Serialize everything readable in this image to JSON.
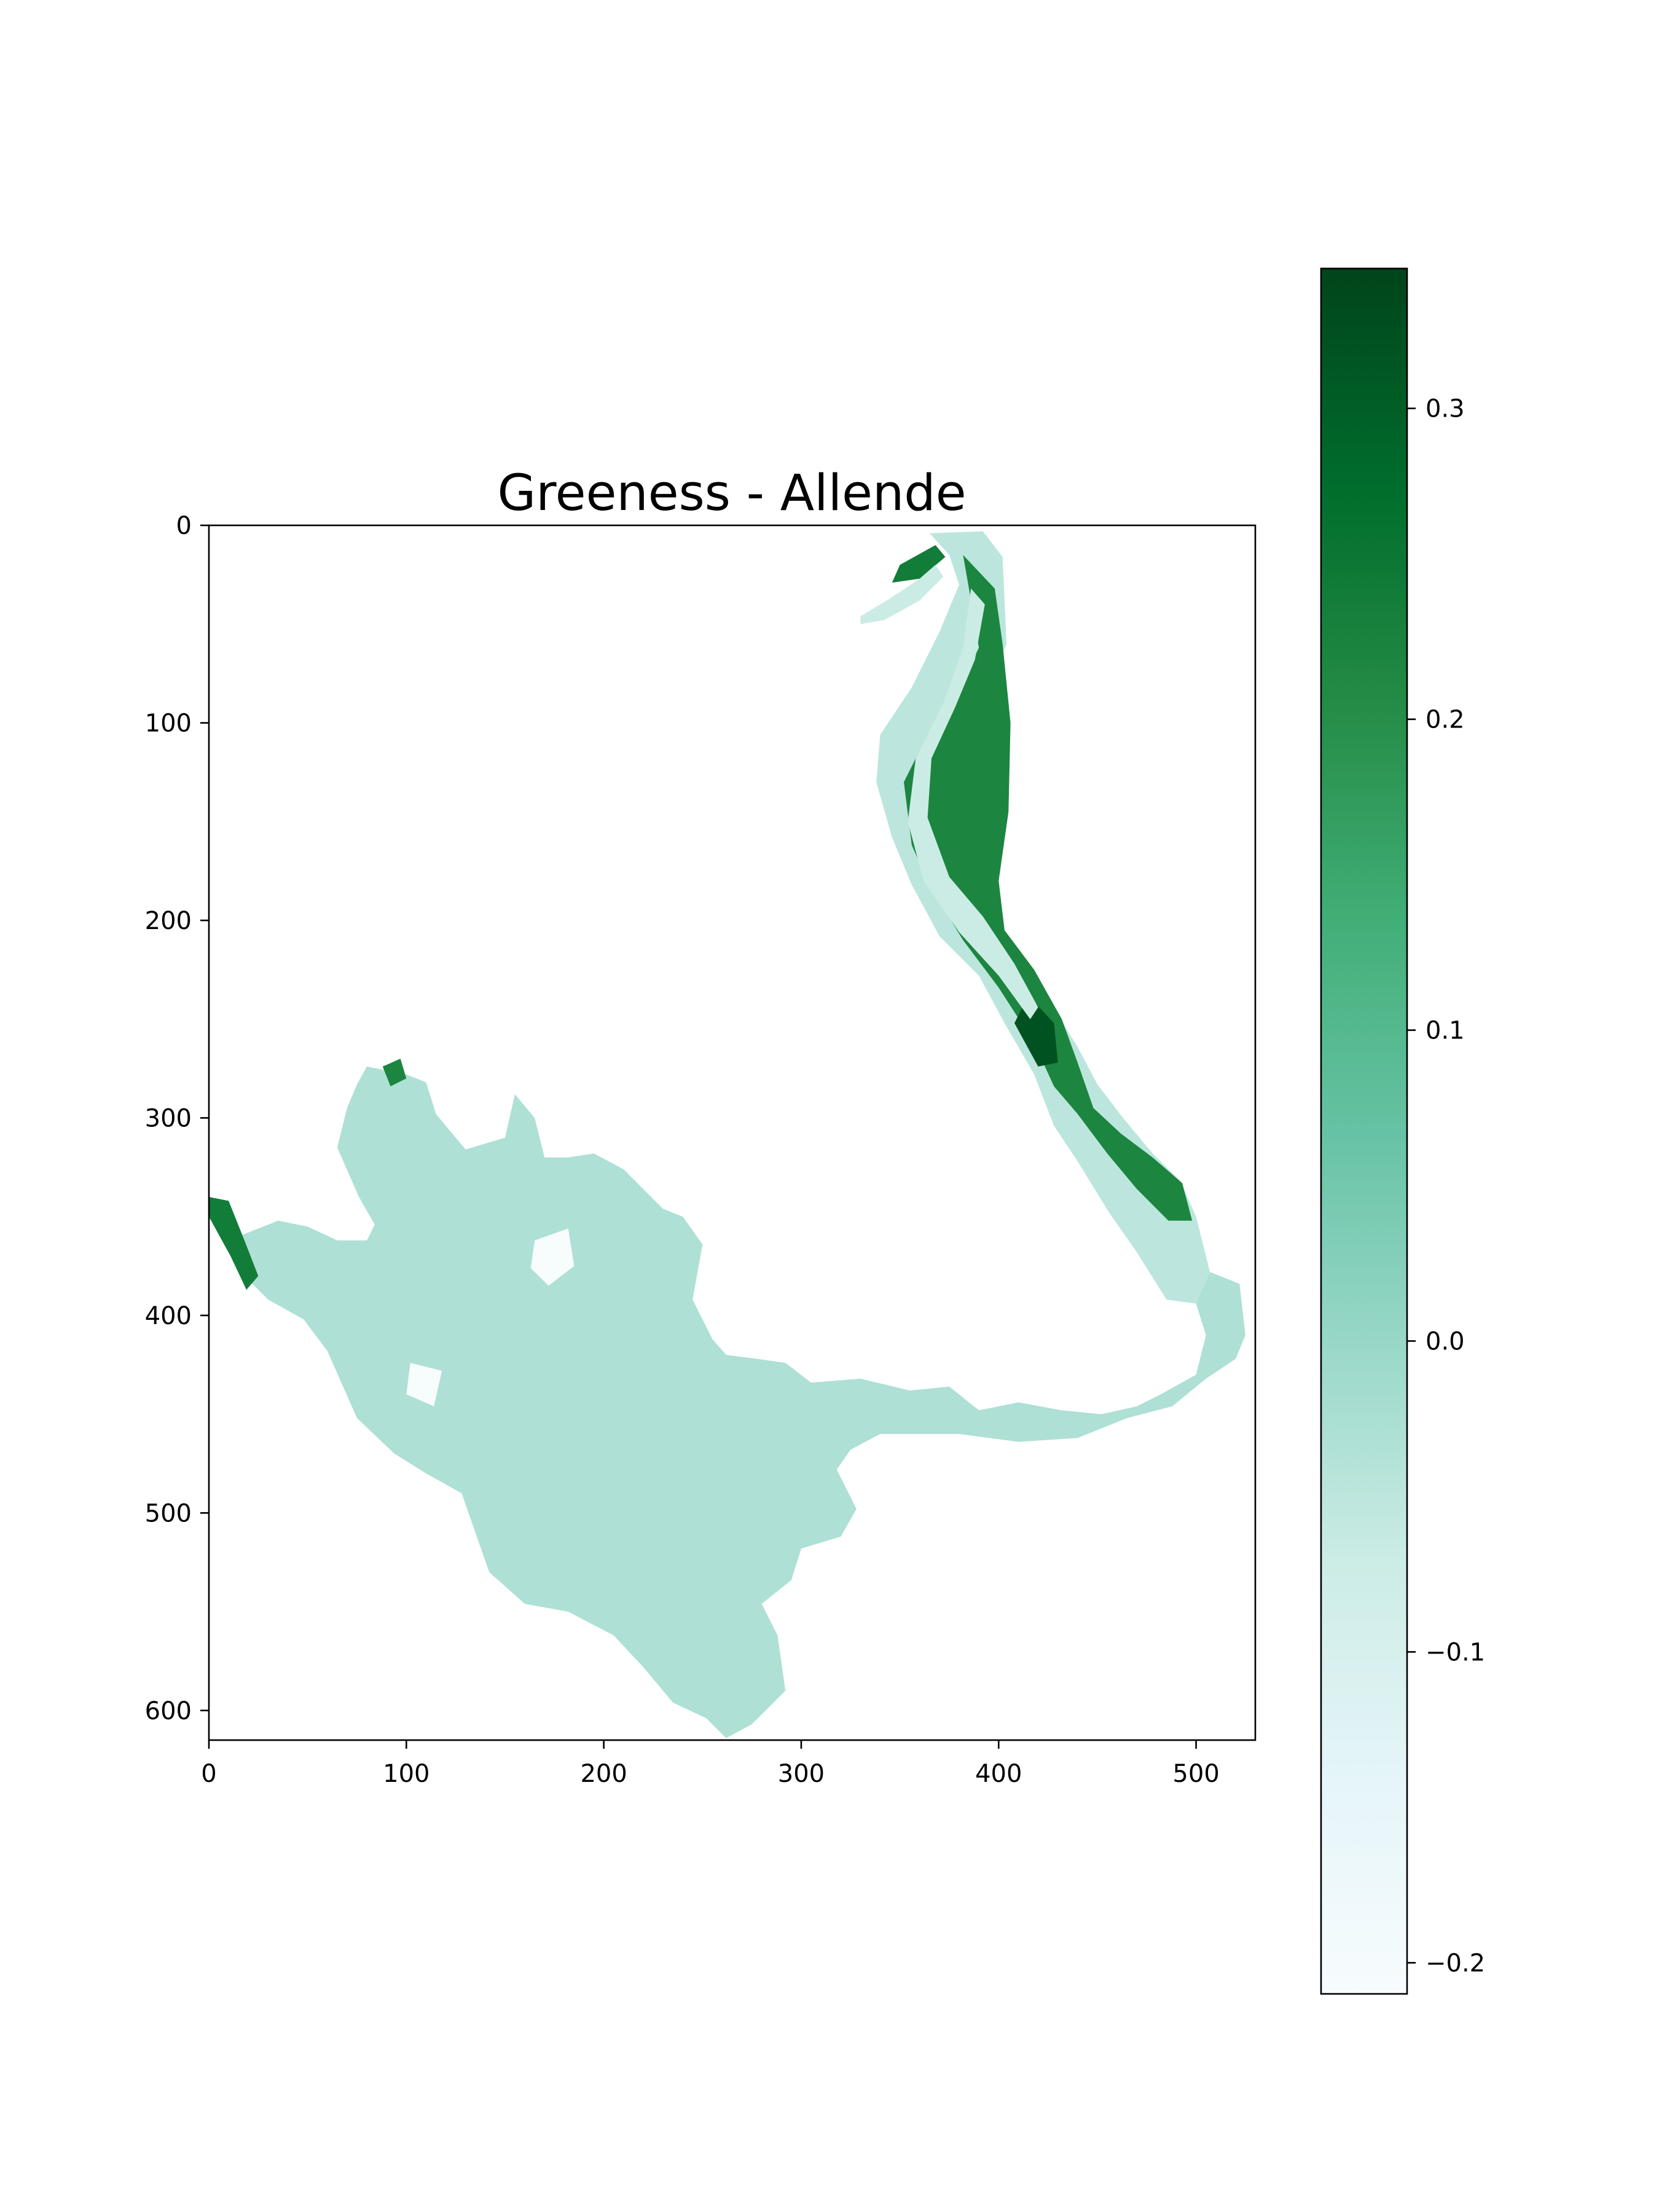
{
  "chart_data": {
    "type": "heatmap",
    "title": "Greeness - Allende",
    "xlabel": "",
    "ylabel": "",
    "x_range": [
      0,
      530
    ],
    "y_range": [
      0,
      615
    ],
    "y_inverted": true,
    "x_ticks": [
      0,
      100,
      200,
      300,
      400,
      500
    ],
    "y_ticks": [
      0,
      100,
      200,
      300,
      400,
      500,
      600
    ],
    "x_tick_labels": [
      "0",
      "100",
      "200",
      "300",
      "400",
      "500"
    ],
    "y_tick_labels": [
      "0",
      "100",
      "200",
      "300",
      "400",
      "500",
      "600"
    ],
    "grid": false,
    "colormap": "BuGn",
    "colorbar": {
      "range": [
        -0.21,
        0.345
      ],
      "ticks": [
        -0.2,
        -0.1,
        0.0,
        0.1,
        0.2,
        0.3
      ],
      "tick_labels": [
        "−0.2",
        "−0.1",
        "0.0",
        "0.1",
        "0.2",
        "0.3"
      ],
      "colors": [
        "#f7fcfd",
        "#e5f5f9",
        "#ccece6",
        "#99d8c9",
        "#66c2a4",
        "#41ae76",
        "#238b45",
        "#006d2c",
        "#00441b"
      ]
    },
    "regions": [
      {
        "name": "reservoir-body",
        "value": -0.03,
        "outline": [
          [
            80,
            274
          ],
          [
            100,
            278
          ],
          [
            110,
            282
          ],
          [
            115,
            298
          ],
          [
            130,
            316
          ],
          [
            150,
            310
          ],
          [
            155,
            288
          ],
          [
            165,
            300
          ],
          [
            170,
            320
          ],
          [
            182,
            320
          ],
          [
            195,
            318
          ],
          [
            210,
            326
          ],
          [
            230,
            346
          ],
          [
            240,
            350
          ],
          [
            250,
            364
          ],
          [
            245,
            392
          ],
          [
            255,
            412
          ],
          [
            262,
            420
          ],
          [
            278,
            422
          ],
          [
            292,
            424
          ],
          [
            305,
            434
          ],
          [
            330,
            432
          ],
          [
            355,
            438
          ],
          [
            375,
            436
          ],
          [
            390,
            448
          ],
          [
            410,
            444
          ],
          [
            432,
            448
          ],
          [
            452,
            450
          ],
          [
            470,
            446
          ],
          [
            482,
            440
          ],
          [
            500,
            430
          ],
          [
            505,
            410
          ],
          [
            500,
            394
          ],
          [
            507,
            378
          ],
          [
            522,
            384
          ],
          [
            525,
            410
          ],
          [
            520,
            422
          ],
          [
            505,
            432
          ],
          [
            488,
            446
          ],
          [
            465,
            452
          ],
          [
            440,
            462
          ],
          [
            410,
            464
          ],
          [
            380,
            460
          ],
          [
            340,
            460
          ],
          [
            325,
            468
          ],
          [
            318,
            478
          ],
          [
            328,
            498
          ],
          [
            320,
            512
          ],
          [
            300,
            518
          ],
          [
            295,
            534
          ],
          [
            280,
            546
          ],
          [
            288,
            562
          ],
          [
            292,
            590
          ],
          [
            275,
            607
          ],
          [
            262,
            614
          ],
          [
            252,
            604
          ],
          [
            235,
            596
          ],
          [
            220,
            578
          ],
          [
            205,
            562
          ],
          [
            182,
            550
          ],
          [
            160,
            546
          ],
          [
            142,
            530
          ],
          [
            135,
            510
          ],
          [
            128,
            490
          ],
          [
            110,
            480
          ],
          [
            94,
            470
          ],
          [
            75,
            452
          ],
          [
            60,
            418
          ],
          [
            48,
            402
          ],
          [
            30,
            392
          ],
          [
            20,
            382
          ],
          [
            10,
            362
          ],
          [
            20,
            358
          ],
          [
            35,
            352
          ],
          [
            50,
            355
          ],
          [
            65,
            362
          ],
          [
            80,
            362
          ],
          [
            84,
            354
          ],
          [
            76,
            340
          ],
          [
            65,
            315
          ],
          [
            70,
            295
          ],
          [
            75,
            283
          ]
        ]
      },
      {
        "name": "reservoir-dry-patch-a",
        "value": -0.21,
        "outline": [
          [
            165,
            362
          ],
          [
            182,
            356
          ],
          [
            185,
            375
          ],
          [
            172,
            385
          ],
          [
            163,
            376
          ]
        ]
      },
      {
        "name": "reservoir-dry-patch-b",
        "value": -0.21,
        "outline": [
          [
            102,
            424
          ],
          [
            118,
            428
          ],
          [
            114,
            446
          ],
          [
            100,
            440
          ]
        ]
      },
      {
        "name": "river-channel",
        "value": -0.05,
        "outline": [
          [
            365,
            4
          ],
          [
            392,
            3
          ],
          [
            402,
            16
          ],
          [
            404,
            60
          ],
          [
            392,
            90
          ],
          [
            380,
            120
          ],
          [
            376,
            160
          ],
          [
            392,
            190
          ],
          [
            405,
            212
          ],
          [
            420,
            232
          ],
          [
            440,
            264
          ],
          [
            450,
            283
          ],
          [
            463,
            300
          ],
          [
            478,
            318
          ],
          [
            492,
            332
          ],
          [
            500,
            350
          ],
          [
            507,
            378
          ],
          [
            500,
            394
          ],
          [
            485,
            392
          ],
          [
            470,
            368
          ],
          [
            456,
            348
          ],
          [
            440,
            322
          ],
          [
            428,
            304
          ],
          [
            418,
            278
          ],
          [
            403,
            252
          ],
          [
            390,
            228
          ],
          [
            370,
            208
          ],
          [
            356,
            182
          ],
          [
            346,
            158
          ],
          [
            338,
            130
          ],
          [
            340,
            106
          ],
          [
            356,
            82
          ],
          [
            370,
            54
          ],
          [
            380,
            30
          ],
          [
            375,
            15
          ]
        ]
      },
      {
        "name": "upper-wetland",
        "value": 0.22,
        "outline": [
          [
            382,
            15
          ],
          [
            398,
            32
          ],
          [
            402,
            60
          ],
          [
            406,
            100
          ],
          [
            405,
            145
          ],
          [
            400,
            180
          ],
          [
            403,
            205
          ],
          [
            418,
            225
          ],
          [
            432,
            250
          ],
          [
            440,
            272
          ],
          [
            448,
            295
          ],
          [
            462,
            308
          ],
          [
            478,
            320
          ],
          [
            493,
            333
          ],
          [
            498,
            352
          ],
          [
            486,
            352
          ],
          [
            470,
            336
          ],
          [
            455,
            318
          ],
          [
            440,
            298
          ],
          [
            428,
            284
          ],
          [
            418,
            262
          ],
          [
            400,
            234
          ],
          [
            382,
            210
          ],
          [
            366,
            184
          ],
          [
            356,
            162
          ],
          [
            352,
            130
          ],
          [
            362,
            110
          ],
          [
            378,
            86
          ],
          [
            390,
            62
          ],
          [
            386,
            38
          ]
        ]
      },
      {
        "name": "dark-vegetation-patch",
        "value": 0.32,
        "outline": [
          [
            415,
            238
          ],
          [
            428,
            252
          ],
          [
            430,
            272
          ],
          [
            420,
            274
          ],
          [
            408,
            252
          ]
        ]
      },
      {
        "name": "river-inner-channel",
        "value": -0.07,
        "outline": [
          [
            386,
            32
          ],
          [
            393,
            40
          ],
          [
            388,
            68
          ],
          [
            378,
            92
          ],
          [
            366,
            118
          ],
          [
            364,
            148
          ],
          [
            375,
            178
          ],
          [
            392,
            198
          ],
          [
            408,
            222
          ],
          [
            420,
            244
          ],
          [
            416,
            250
          ],
          [
            400,
            228
          ],
          [
            380,
            206
          ],
          [
            362,
            180
          ],
          [
            354,
            150
          ],
          [
            358,
            118
          ],
          [
            372,
            90
          ],
          [
            382,
            62
          ]
        ]
      },
      {
        "name": "upper-left-strip",
        "value": 0.24,
        "outline": [
          [
            350,
            20
          ],
          [
            368,
            10
          ],
          [
            373,
            16
          ],
          [
            360,
            27
          ],
          [
            346,
            29
          ]
        ]
      },
      {
        "name": "upper-left-light-strip",
        "value": -0.07,
        "outline": [
          [
            330,
            46
          ],
          [
            345,
            37
          ],
          [
            360,
            27
          ],
          [
            368,
            20
          ],
          [
            372,
            26
          ],
          [
            360,
            38
          ],
          [
            342,
            48
          ],
          [
            330,
            50
          ]
        ]
      },
      {
        "name": "left-edge-vegetation",
        "value": 0.24,
        "outline": [
          [
            0,
            340
          ],
          [
            10,
            342
          ],
          [
            18,
            362
          ],
          [
            25,
            380
          ],
          [
            19,
            387
          ],
          [
            11,
            370
          ],
          [
            0,
            350
          ]
        ]
      },
      {
        "name": "left-top-vegetation",
        "value": 0.22,
        "outline": [
          [
            88,
            274
          ],
          [
            97,
            270
          ],
          [
            100,
            280
          ],
          [
            92,
            284
          ]
        ]
      }
    ]
  }
}
